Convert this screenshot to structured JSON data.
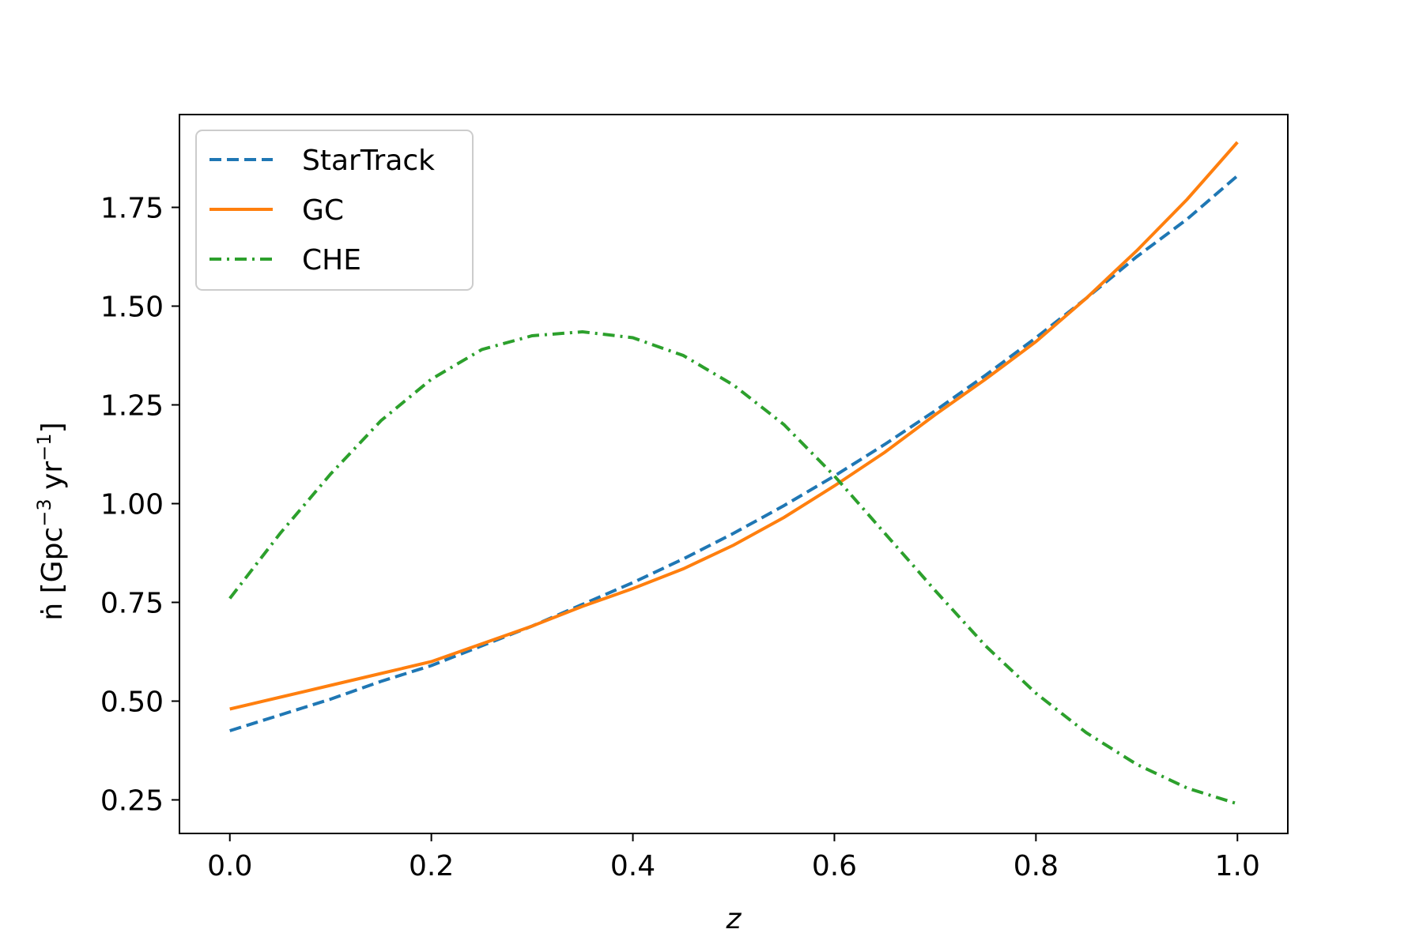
{
  "chart_data": {
    "type": "line",
    "title": "",
    "xlabel": "z",
    "ylabel_main": "ṅ [Gpc",
    "ylabel_sup1": "−3",
    "ylabel_mid": " yr",
    "ylabel_sup2": "−1",
    "ylabel_end": "]",
    "xlim": [
      -0.05,
      1.05
    ],
    "ylim": [
      0.165,
      1.985
    ],
    "xticks": [
      0.0,
      0.2,
      0.4,
      0.6,
      0.8,
      1.0
    ],
    "xtick_labels": [
      "0.0",
      "0.2",
      "0.4",
      "0.6",
      "0.8",
      "1.0"
    ],
    "yticks": [
      0.25,
      0.5,
      0.75,
      1.0,
      1.25,
      1.5,
      1.75
    ],
    "ytick_labels": [
      "0.25",
      "0.50",
      "0.75",
      "1.00",
      "1.25",
      "1.50",
      "1.75"
    ],
    "grid": false,
    "legend_position": "top-left",
    "series": [
      {
        "name": "StarTrack",
        "color": "#1f77b4",
        "style": "dashed",
        "x": [
          0.0,
          0.05,
          0.1,
          0.15,
          0.2,
          0.25,
          0.3,
          0.35,
          0.4,
          0.45,
          0.5,
          0.55,
          0.6,
          0.65,
          0.7,
          0.75,
          0.8,
          0.85,
          0.9,
          0.95,
          1.0
        ],
        "y": [
          0.425,
          0.465,
          0.505,
          0.55,
          0.59,
          0.64,
          0.69,
          0.745,
          0.8,
          0.86,
          0.925,
          0.995,
          1.07,
          1.15,
          1.235,
          1.325,
          1.42,
          1.52,
          1.625,
          1.72,
          1.83
        ]
      },
      {
        "name": "GC",
        "color": "#ff7f0e",
        "style": "solid",
        "x": [
          0.0,
          0.05,
          0.1,
          0.15,
          0.2,
          0.25,
          0.3,
          0.35,
          0.4,
          0.45,
          0.5,
          0.55,
          0.6,
          0.65,
          0.7,
          0.75,
          0.8,
          0.85,
          0.9,
          0.95,
          1.0
        ],
        "y": [
          0.48,
          0.51,
          0.54,
          0.57,
          0.6,
          0.645,
          0.69,
          0.74,
          0.785,
          0.835,
          0.895,
          0.965,
          1.045,
          1.13,
          1.225,
          1.315,
          1.41,
          1.52,
          1.64,
          1.77,
          1.915
        ]
      },
      {
        "name": "CHE",
        "color": "#2ca02c",
        "style": "dashdot",
        "x": [
          0.0,
          0.05,
          0.1,
          0.15,
          0.2,
          0.25,
          0.3,
          0.35,
          0.4,
          0.45,
          0.5,
          0.55,
          0.6,
          0.65,
          0.7,
          0.75,
          0.8,
          0.85,
          0.9,
          0.95,
          1.0
        ],
        "y": [
          0.76,
          0.925,
          1.075,
          1.21,
          1.315,
          1.39,
          1.425,
          1.435,
          1.42,
          1.375,
          1.3,
          1.2,
          1.07,
          0.925,
          0.78,
          0.64,
          0.52,
          0.42,
          0.34,
          0.28,
          0.24
        ]
      }
    ]
  }
}
